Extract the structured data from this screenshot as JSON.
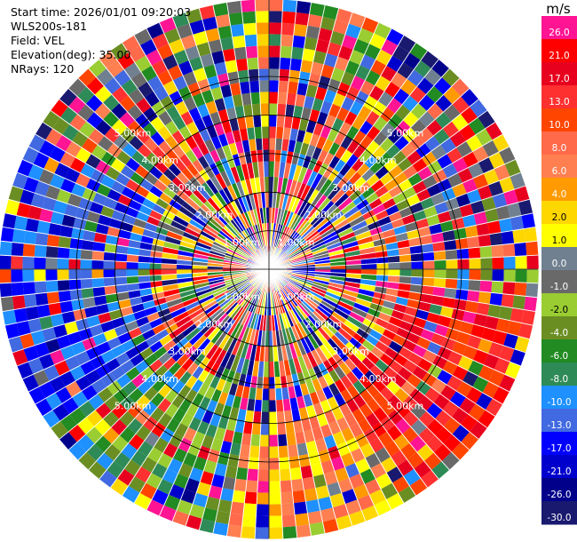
{
  "chart_data": {
    "type": "heatmap",
    "subtype": "radar-ppi",
    "info": {
      "start_time": "Start time: 2026/01/01 09:20:03",
      "instrument": "WLS200s-181",
      "field": "Field: VEL",
      "elevation": "Elevation(deg): 35.00",
      "nrays": "NRays: 120"
    },
    "n_rays": 120,
    "max_range_km": 7.0,
    "range_gates_km": [
      0.6,
      1.2,
      1.6,
      2.0,
      2.4,
      2.8,
      3.1,
      3.4,
      3.7,
      4.0,
      4.3,
      4.6,
      4.9,
      5.2,
      5.5,
      5.8,
      6.1,
      6.4,
      6.7,
      7.0
    ],
    "range_rings": [
      {
        "km": 1,
        "label": "1.00km"
      },
      {
        "km": 2,
        "label": "2.00km"
      },
      {
        "km": 3,
        "label": "3.00km"
      },
      {
        "km": 4,
        "label": "4.00km"
      },
      {
        "km": 5,
        "label": "5.00km"
      }
    ],
    "colorbar": {
      "unit": "m/s",
      "ticks": [
        "26.0",
        "21.0",
        "17.0",
        "13.0",
        "10.0",
        "8.0",
        "6.0",
        "4.0",
        "2.0",
        "1.0",
        "0.0",
        "-1.0",
        "-2.0",
        "-4.0",
        "-6.0",
        "-8.0",
        "-10.0",
        "-13.0",
        "-17.0",
        "-21.0",
        "-26.0",
        "-30.0"
      ],
      "colors": [
        "#ff1493",
        "#ff0000",
        "#e8001f",
        "#ff3030",
        "#ff4500",
        "#ff6a4a",
        "#ff7f50",
        "#ff9a00",
        "#ffd700",
        "#ffff00",
        "#708090",
        "#696969",
        "#9acd32",
        "#6b8e23",
        "#228b22",
        "#2e8b57",
        "#1e90ff",
        "#4169e1",
        "#0000ff",
        "#0000cd",
        "#00008b",
        "#191970"
      ],
      "vmin": -30,
      "vmax": 30
    }
  }
}
